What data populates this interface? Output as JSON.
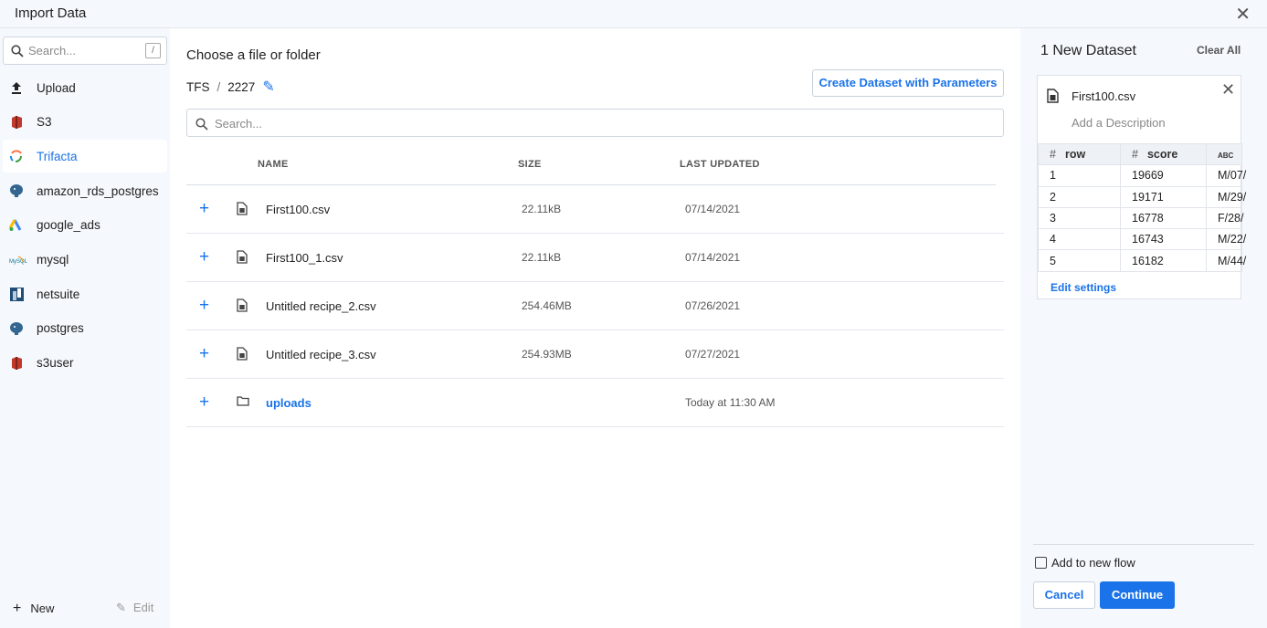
{
  "header": {
    "title": "Import Data",
    "close_icon": "close-icon"
  },
  "sidebar": {
    "search_placeholder": "Search...",
    "shortcut": "/",
    "items": [
      {
        "label": "Upload",
        "icon": "upload-icon"
      },
      {
        "label": "S3",
        "icon": "s3-icon"
      },
      {
        "label": "Trifacta",
        "icon": "trifacta-icon",
        "active": true
      },
      {
        "label": "amazon_rds_postgres",
        "icon": "postgres-icon"
      },
      {
        "label": "google_ads",
        "icon": "google-ads-icon"
      },
      {
        "label": "mysql",
        "icon": "mysql-icon"
      },
      {
        "label": "netsuite",
        "icon": "netsuite-icon"
      },
      {
        "label": "postgres",
        "icon": "postgres-icon"
      },
      {
        "label": "s3user",
        "icon": "s3-icon"
      }
    ],
    "new_label": "New",
    "edit_label": "Edit"
  },
  "main": {
    "title": "Choose a file or folder",
    "breadcrumb": [
      "TFS",
      "/",
      "2227"
    ],
    "create_button": "Create Dataset with Parameters",
    "search_placeholder": "Search...",
    "columns": [
      "NAME",
      "SIZE",
      "LAST UPDATED"
    ],
    "rows": [
      {
        "name": "First100.csv",
        "size": "22.11kB",
        "updated": "07/14/2021",
        "type": "file"
      },
      {
        "name": "First100_1.csv",
        "size": "22.11kB",
        "updated": "07/14/2021",
        "type": "file"
      },
      {
        "name": "Untitled recipe_2.csv",
        "size": "254.46MB",
        "updated": "07/26/2021",
        "type": "file"
      },
      {
        "name": "Untitled recipe_3.csv",
        "size": "254.93MB",
        "updated": "07/27/2021",
        "type": "file"
      },
      {
        "name": "uploads",
        "size": "",
        "updated": "Today at 11:30 AM",
        "type": "folder"
      }
    ]
  },
  "panel": {
    "title": "1 New Dataset",
    "clear_all": "Clear All",
    "dataset": {
      "name": "First100.csv",
      "description_placeholder": "Add a Description",
      "columns": [
        {
          "type": "#",
          "name": "row"
        },
        {
          "type": "#",
          "name": "score"
        },
        {
          "type": "ABC",
          "name": ""
        }
      ],
      "rows": [
        [
          "1",
          "19669",
          "M/07/"
        ],
        [
          "2",
          "19171",
          "M/29/"
        ],
        [
          "3",
          "16778",
          "F/28/"
        ],
        [
          "4",
          "16743",
          "M/22/"
        ],
        [
          "5",
          "16182",
          "M/44/"
        ]
      ],
      "edit_settings": "Edit settings"
    },
    "add_to_flow": "Add to new flow",
    "add_to_flow_checked": false,
    "cancel": "Cancel",
    "continue": "Continue"
  },
  "colors": {
    "accent": "#1a73e8",
    "sidebar_bg": "#f5f8fc"
  }
}
